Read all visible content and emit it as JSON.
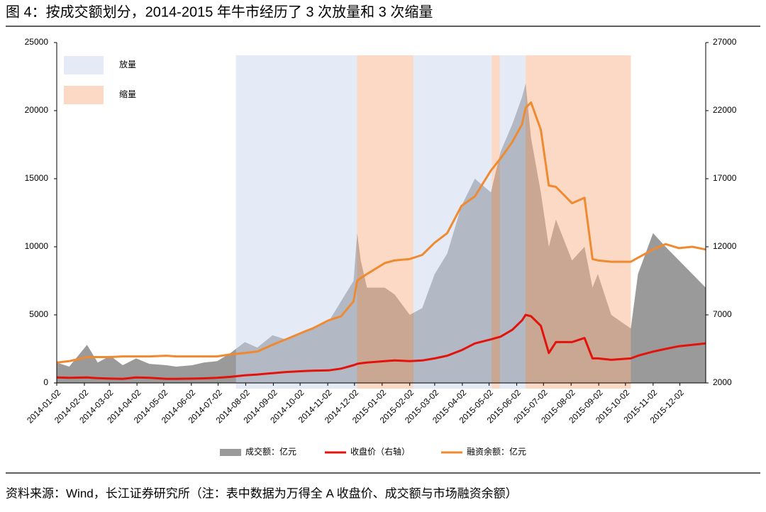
{
  "chart_data": {
    "type": "area-line",
    "title": "图 4：按成交额划分，2014-2015 年牛市经历了 3 次放量和 3 次缩量",
    "source": "资料来源：Wind，长江证券研究所（注：表中数据为万得全 A 收盘价、成交额与市场融资余额）",
    "x": [
      "2014-01-02",
      "2014-01-16",
      "2014-02-05",
      "2014-02-17",
      "2014-03-03",
      "2014-03-17",
      "2014-04-01",
      "2014-04-16",
      "2014-05-05",
      "2014-05-16",
      "2014-06-03",
      "2014-06-16",
      "2014-07-01",
      "2014-07-16",
      "2014-08-01",
      "2014-08-15",
      "2014-09-01",
      "2014-09-16",
      "2014-10-08",
      "2014-10-16",
      "2014-11-03",
      "2014-11-17",
      "2014-12-01",
      "2014-12-05",
      "2014-12-09",
      "2014-12-16",
      "2015-01-05",
      "2015-01-16",
      "2015-02-02",
      "2015-02-16",
      "2015-03-02",
      "2015-03-16",
      "2015-04-01",
      "2015-04-16",
      "2015-05-04",
      "2015-05-15",
      "2015-05-28",
      "2015-06-08",
      "2015-06-12",
      "2015-06-18",
      "2015-06-29",
      "2015-07-08",
      "2015-07-16",
      "2015-08-03",
      "2015-08-17",
      "2015-08-26",
      "2015-09-01",
      "2015-09-16",
      "2015-10-08",
      "2015-10-16",
      "2015-11-02",
      "2015-11-16",
      "2015-12-01",
      "2015-12-16",
      "2015-12-31"
    ],
    "xlim": [
      "2014-01-02",
      "2015-12-31"
    ],
    "xticks": [
      "2014-01-02",
      "2014-02-02",
      "2014-03-02",
      "2014-04-02",
      "2014-05-02",
      "2014-06-02",
      "2014-07-02",
      "2014-08-02",
      "2014-09-02",
      "2014-10-02",
      "2014-11-02",
      "2014-12-02",
      "2015-01-02",
      "2015-02-02",
      "2015-03-02",
      "2015-04-02",
      "2015-05-02",
      "2015-06-02",
      "2015-07-02",
      "2015-08-02",
      "2015-09-02",
      "2015-10-02",
      "2015-11-02",
      "2015-12-02"
    ],
    "ylim": [
      0,
      25000
    ],
    "yticks": [
      0,
      5000,
      10000,
      15000,
      20000,
      25000
    ],
    "y2lim": [
      2000,
      27000
    ],
    "y2ticks": [
      2000,
      7000,
      12000,
      17000,
      22000,
      27000
    ],
    "series": [
      {
        "name": "成交额：亿元",
        "color": "#9a9a9a",
        "kind": "area",
        "values": [
          1500,
          1200,
          2800,
          1500,
          2000,
          1300,
          1800,
          1400,
          1300,
          1200,
          1300,
          1500,
          1600,
          2200,
          3000,
          2600,
          3500,
          3200,
          3800,
          4000,
          4500,
          6000,
          7500,
          11000,
          9000,
          7000,
          7000,
          6500,
          5000,
          5500,
          8000,
          9500,
          13000,
          15000,
          14000,
          17000,
          19000,
          21000,
          22000,
          18000,
          14000,
          10000,
          12000,
          9000,
          10000,
          7000,
          8000,
          5000,
          4000,
          8000,
          11000,
          10000,
          9000,
          8000,
          7000
        ]
      },
      {
        "name": "收盘价（右轴）",
        "color": "#e3120b",
        "kind": "line",
        "axis": "y2",
        "values": [
          2400,
          2380,
          2400,
          2350,
          2320,
          2300,
          2400,
          2380,
          2300,
          2300,
          2320,
          2340,
          2380,
          2450,
          2560,
          2620,
          2720,
          2800,
          2880,
          2900,
          2920,
          3050,
          3300,
          3400,
          3450,
          3500,
          3600,
          3650,
          3600,
          3650,
          3800,
          4000,
          4400,
          4900,
          5200,
          5400,
          5900,
          6600,
          7000,
          6900,
          6200,
          4200,
          5000,
          5000,
          5300,
          3800,
          3800,
          3700,
          3800,
          4000,
          4300,
          4500,
          4700,
          4800,
          4900
        ]
      },
      {
        "name": "融资余额：亿元",
        "color": "#f08a30",
        "kind": "line",
        "axis": "y2",
        "values": [
          3500,
          3600,
          3900,
          3900,
          3900,
          3950,
          3950,
          3950,
          4000,
          3950,
          3950,
          3950,
          3950,
          4100,
          4200,
          4300,
          4800,
          5200,
          5800,
          6000,
          6600,
          6900,
          8000,
          9500,
          9700,
          10000,
          10800,
          11000,
          11100,
          11400,
          12300,
          13000,
          15000,
          15700,
          17600,
          18500,
          19700,
          21000,
          22200,
          22600,
          20600,
          16500,
          16400,
          15200,
          15600,
          11100,
          11000,
          10900,
          10900,
          11200,
          11800,
          12200,
          11900,
          12000,
          11800
        ]
      }
    ],
    "shade_legend": [
      {
        "name": "放量",
        "color": "#c9d6ee"
      },
      {
        "name": "缩量",
        "color": "#f7b48a"
      }
    ],
    "regions": [
      {
        "start": "2014-07-22",
        "end": "2014-12-05",
        "kind": 0
      },
      {
        "start": "2014-12-05",
        "end": "2015-02-06",
        "kind": 1
      },
      {
        "start": "2015-02-06",
        "end": "2015-05-05",
        "kind": 0
      },
      {
        "start": "2015-05-05",
        "end": "2015-05-14",
        "kind": 1
      },
      {
        "start": "2015-05-14",
        "end": "2015-06-12",
        "kind": 0
      },
      {
        "start": "2015-06-12",
        "end": "2015-10-08",
        "kind": 1
      }
    ]
  }
}
